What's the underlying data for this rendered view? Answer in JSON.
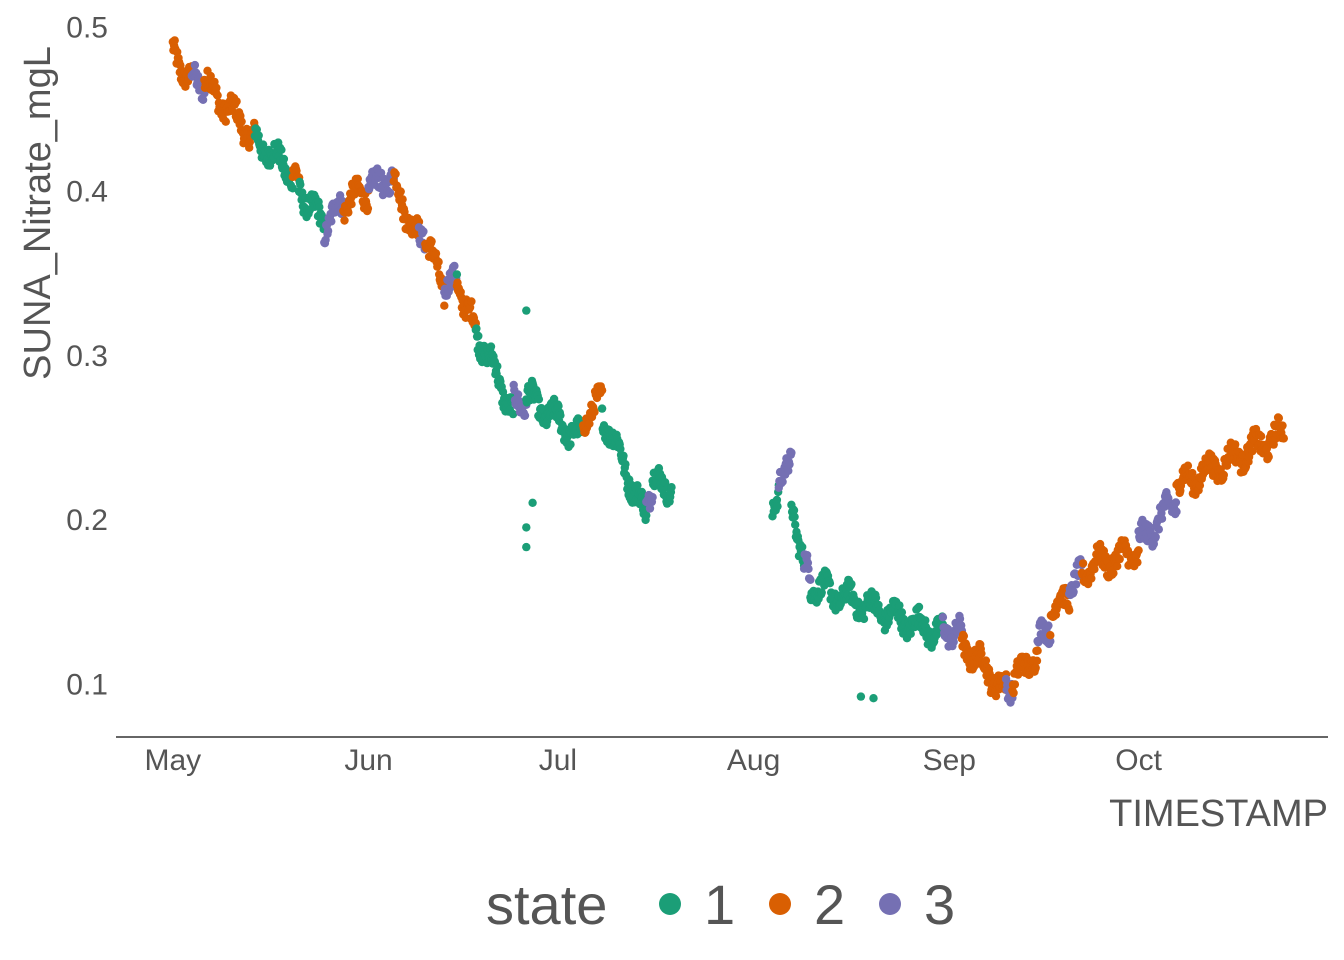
{
  "chart_data": {
    "type": "scatter",
    "title": "",
    "xlabel": "TIMESTAMP",
    "ylabel": "SUNA_Nitrate_mgL",
    "x_ticks": [
      "May",
      "Jun",
      "Jul",
      "Aug",
      "Sep",
      "Oct"
    ],
    "x_tick_dates": [
      "2000-05-01",
      "2000-06-01",
      "2000-07-01",
      "2000-08-01",
      "2000-09-01",
      "2000-10-01"
    ],
    "xlim": [
      "2000-04-22",
      "2000-10-31"
    ],
    "y_ticks": [
      "0.1",
      "0.2",
      "0.3",
      "0.4",
      "0.5"
    ],
    "y_tick_values": [
      0.1,
      0.2,
      0.3,
      0.4,
      0.5
    ],
    "ylim": [
      0.068,
      0.51
    ],
    "grid": false,
    "legend_position": "bottom",
    "legend_title": "state",
    "series": [
      {
        "name": "1",
        "color": "#1B9E77"
      },
      {
        "name": "2",
        "color": "#D95F02"
      },
      {
        "name": "3",
        "color": "#7570B3"
      }
    ],
    "segments": [
      {
        "state": "2",
        "from": "2000-05-01",
        "to": "2000-05-04",
        "y_start": 0.483,
        "y_end": 0.468
      },
      {
        "state": "3",
        "from": "2000-05-04",
        "to": "2000-05-06",
        "y_start": 0.468,
        "y_end": 0.466
      },
      {
        "state": "2",
        "from": "2000-05-06",
        "to": "2000-05-14",
        "y_start": 0.466,
        "y_end": 0.432
      },
      {
        "state": "1",
        "from": "2000-05-14",
        "to": "2000-05-20",
        "y_start": 0.432,
        "y_end": 0.41
      },
      {
        "state": "2",
        "from": "2000-05-20",
        "to": "2000-05-21",
        "y_start": 0.41,
        "y_end": 0.402
      },
      {
        "state": "1",
        "from": "2000-05-21",
        "to": "2000-05-25",
        "y_start": 0.402,
        "y_end": 0.378
      },
      {
        "state": "3",
        "from": "2000-05-25",
        "to": "2000-05-28",
        "y_start": 0.378,
        "y_end": 0.392
      },
      {
        "state": "2",
        "from": "2000-05-28",
        "to": "2000-06-01",
        "y_start": 0.392,
        "y_end": 0.4
      },
      {
        "state": "3",
        "from": "2000-06-01",
        "to": "2000-06-05",
        "y_start": 0.4,
        "y_end": 0.41
      },
      {
        "state": "2",
        "from": "2000-06-05",
        "to": "2000-06-09",
        "y_start": 0.405,
        "y_end": 0.37
      },
      {
        "state": "3",
        "from": "2000-06-09",
        "to": "2000-06-10",
        "y_start": 0.372,
        "y_end": 0.375
      },
      {
        "state": "2",
        "from": "2000-06-10",
        "to": "2000-06-13",
        "y_start": 0.37,
        "y_end": 0.34
      },
      {
        "state": "3",
        "from": "2000-06-13",
        "to": "2000-06-15",
        "y_start": 0.342,
        "y_end": 0.343
      },
      {
        "state": "2",
        "from": "2000-06-15",
        "to": "2000-06-18",
        "y_start": 0.345,
        "y_end": 0.315
      },
      {
        "state": "1",
        "from": "2000-06-18",
        "to": "2000-06-24",
        "y_start": 0.315,
        "y_end": 0.265
      },
      {
        "state": "3",
        "from": "2000-06-24",
        "to": "2000-06-26",
        "y_start": 0.27,
        "y_end": 0.272
      },
      {
        "state": "1",
        "from": "2000-06-26",
        "to": "2000-07-05",
        "y_start": 0.275,
        "y_end": 0.248
      },
      {
        "state": "2",
        "from": "2000-07-05",
        "to": "2000-07-08",
        "y_start": 0.262,
        "y_end": 0.272
      },
      {
        "state": "1",
        "from": "2000-07-08",
        "to": "2000-07-15",
        "y_start": 0.265,
        "y_end": 0.2
      },
      {
        "state": "3",
        "from": "2000-07-15",
        "to": "2000-07-16",
        "y_start": 0.212,
        "y_end": 0.222
      },
      {
        "state": "1",
        "from": "2000-07-16",
        "to": "2000-07-19",
        "y_start": 0.222,
        "y_end": 0.22
      },
      {
        "state": "1",
        "from": "2000-08-04",
        "to": "2000-08-05",
        "y_start": 0.198,
        "y_end": 0.22
      },
      {
        "state": "3",
        "from": "2000-08-05",
        "to": "2000-08-07",
        "y_start": 0.228,
        "y_end": 0.23
      },
      {
        "state": "1",
        "from": "2000-08-07",
        "to": "2000-08-09",
        "y_start": 0.21,
        "y_end": 0.175
      },
      {
        "state": "3",
        "from": "2000-08-09",
        "to": "2000-08-10",
        "y_start": 0.17,
        "y_end": 0.165
      },
      {
        "state": "1",
        "from": "2000-08-10",
        "to": "2000-08-31",
        "y_start": 0.16,
        "y_end": 0.13
      },
      {
        "state": "3",
        "from": "2000-08-31",
        "to": "2000-09-03",
        "y_start": 0.135,
        "y_end": 0.13
      },
      {
        "state": "2",
        "from": "2000-09-03",
        "to": "2000-09-10",
        "y_start": 0.125,
        "y_end": 0.095
      },
      {
        "state": "3",
        "from": "2000-09-10",
        "to": "2000-09-11",
        "y_start": 0.098,
        "y_end": 0.1
      },
      {
        "state": "2",
        "from": "2000-09-11",
        "to": "2000-09-15",
        "y_start": 0.1,
        "y_end": 0.12
      },
      {
        "state": "3",
        "from": "2000-09-15",
        "to": "2000-09-17",
        "y_start": 0.125,
        "y_end": 0.135
      },
      {
        "state": "2",
        "from": "2000-09-17",
        "to": "2000-09-20",
        "y_start": 0.14,
        "y_end": 0.155
      },
      {
        "state": "3",
        "from": "2000-09-20",
        "to": "2000-09-22",
        "y_start": 0.157,
        "y_end": 0.165
      },
      {
        "state": "2",
        "from": "2000-09-22",
        "to": "2000-10-01",
        "y_start": 0.17,
        "y_end": 0.18
      },
      {
        "state": "3",
        "from": "2000-10-01",
        "to": "2000-10-07",
        "y_start": 0.185,
        "y_end": 0.212
      },
      {
        "state": "2",
        "from": "2000-10-07",
        "to": "2000-10-24",
        "y_start": 0.22,
        "y_end": 0.252
      }
    ],
    "outliers": [
      {
        "state": "1",
        "date": "2000-06-26",
        "y": 0.327
      },
      {
        "state": "1",
        "date": "2000-06-26",
        "y": 0.183
      },
      {
        "state": "1",
        "date": "2000-06-26",
        "y": 0.195
      },
      {
        "state": "1",
        "date": "2000-06-27",
        "y": 0.21
      },
      {
        "state": "1",
        "date": "2000-06-15",
        "y": 0.349
      },
      {
        "state": "1",
        "date": "2000-08-18",
        "y": 0.092
      },
      {
        "state": "1",
        "date": "2000-08-20",
        "y": 0.091
      }
    ]
  }
}
